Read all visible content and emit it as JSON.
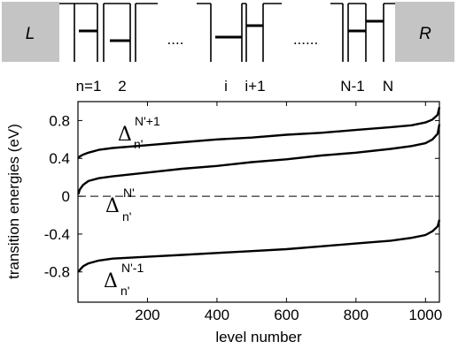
{
  "diagram": {
    "left_lead": "L",
    "right_lead": "R",
    "site_labels": [
      "n=1",
      "2",
      "i",
      "i+1",
      "N-1",
      "N"
    ],
    "ellipses": [
      "....",
      "......"
    ]
  },
  "chart_data": {
    "type": "line",
    "title": "",
    "xlabel": "level number",
    "ylabel": "transition energies (eV)",
    "xlim": [
      0,
      1040
    ],
    "ylim": [
      -1.12,
      1.0
    ],
    "xticks": [
      200,
      400,
      600,
      800,
      1000
    ],
    "xtick_labels": [
      "200",
      "400",
      "600",
      "800",
      "1000"
    ],
    "yticks": [
      0.8,
      0.4,
      0,
      -0.4,
      -0.8
    ],
    "ytick_labels": [
      "0.8",
      "0.4",
      "0",
      "-0.4",
      "-0.8"
    ],
    "grid": false,
    "legend": "none",
    "reference_line": {
      "y": 0,
      "style": "dashed"
    },
    "series": [
      {
        "x": [
          1,
          5,
          15,
          30,
          60,
          100,
          200,
          300,
          400,
          500,
          600,
          700,
          800,
          900,
          960,
          1000,
          1020,
          1035,
          1040
        ],
        "y": [
          0.4,
          0.42,
          0.44,
          0.46,
          0.49,
          0.51,
          0.54,
          0.57,
          0.6,
          0.62,
          0.65,
          0.67,
          0.7,
          0.73,
          0.75,
          0.78,
          0.81,
          0.86,
          0.94
        ]
      },
      {
        "x": [
          1,
          5,
          15,
          30,
          60,
          100,
          200,
          300,
          400,
          500,
          600,
          700,
          800,
          900,
          960,
          1000,
          1020,
          1035,
          1040
        ],
        "y": [
          0.02,
          0.07,
          0.12,
          0.16,
          0.19,
          0.21,
          0.25,
          0.29,
          0.32,
          0.36,
          0.39,
          0.43,
          0.46,
          0.5,
          0.53,
          0.56,
          0.6,
          0.66,
          0.76
        ]
      },
      {
        "x": [
          1,
          5,
          15,
          30,
          60,
          100,
          200,
          300,
          400,
          500,
          600,
          700,
          800,
          900,
          960,
          1000,
          1020,
          1035,
          1040
        ],
        "y": [
          -0.8,
          -0.78,
          -0.74,
          -0.71,
          -0.68,
          -0.66,
          -0.64,
          -0.62,
          -0.6,
          -0.58,
          -0.56,
          -0.53,
          -0.5,
          -0.47,
          -0.44,
          -0.41,
          -0.37,
          -0.32,
          -0.25
        ]
      }
    ],
    "annotations": [
      {
        "symbol": "Δ",
        "sup": "N'+1",
        "sub": "n'"
      },
      {
        "symbol": "Δ",
        "sup": "N'",
        "sub": "n'"
      },
      {
        "symbol": "Δ",
        "sup": "N'-1",
        "sub": "n'"
      }
    ]
  }
}
